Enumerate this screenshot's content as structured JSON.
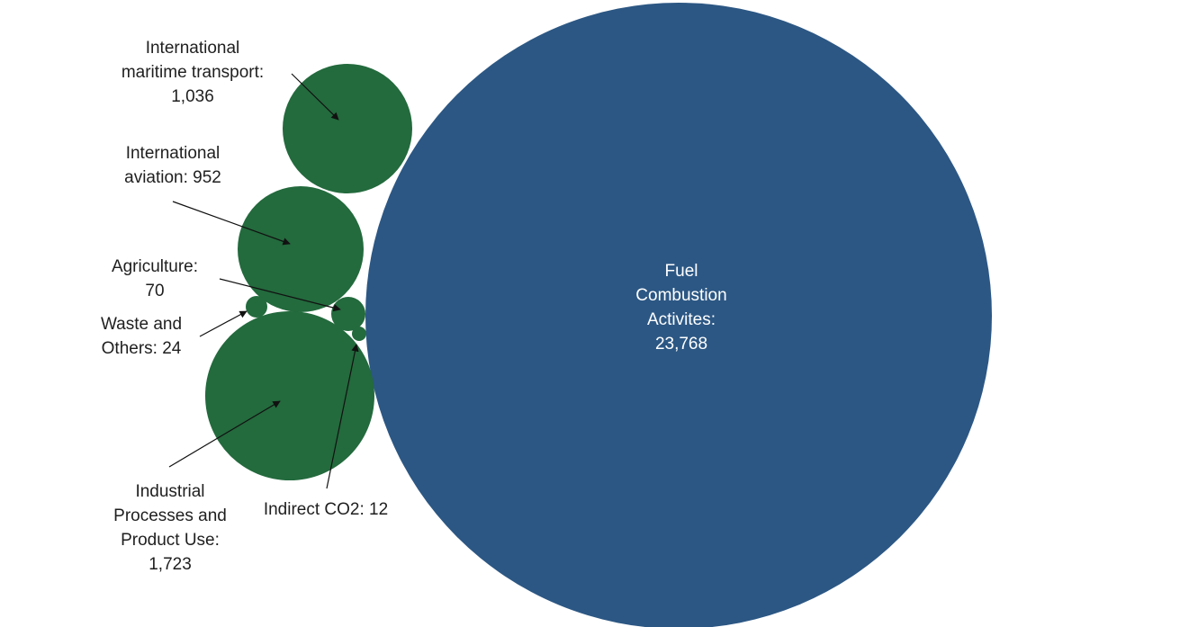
{
  "chart_data": {
    "type": "bubble",
    "title": "",
    "colors": {
      "main": "#2c5784",
      "other": "#236a3d",
      "label": "#1f1f1f",
      "label_inside": "#ffffff"
    },
    "series": [
      {
        "key": "fuel",
        "name": "Fuel Combustion Activites",
        "value": 23768,
        "label_lines": [
          "Fuel",
          "Combustion",
          "Activites:",
          "23,768"
        ],
        "color": "#2c5784"
      },
      {
        "key": "industrial",
        "name": "Industrial Processes and Product Use",
        "value": 1723,
        "label_lines": [
          "Industrial",
          "Processes and",
          "Product Use:",
          "1,723"
        ],
        "color": "#236a3d"
      },
      {
        "key": "maritime",
        "name": "International maritime transport",
        "value": 1036,
        "label_lines": [
          "International",
          "maritime transport:",
          "1,036"
        ],
        "color": "#236a3d"
      },
      {
        "key": "aviation",
        "name": "International aviation",
        "value": 952,
        "label_lines": [
          "International",
          "aviation: 952"
        ],
        "color": "#236a3d"
      },
      {
        "key": "agriculture",
        "name": "Agriculture",
        "value": 70,
        "label_lines": [
          "Agriculture:",
          "70"
        ],
        "color": "#236a3d"
      },
      {
        "key": "waste",
        "name": "Waste and Others",
        "value": 24,
        "label_lines": [
          "Waste and",
          "Others: 24"
        ],
        "color": "#236a3d"
      },
      {
        "key": "indirect",
        "name": "Indirect CO2",
        "value": 12,
        "label_lines": [
          "Indirect CO2: 12"
        ],
        "color": "#236a3d"
      }
    ]
  }
}
